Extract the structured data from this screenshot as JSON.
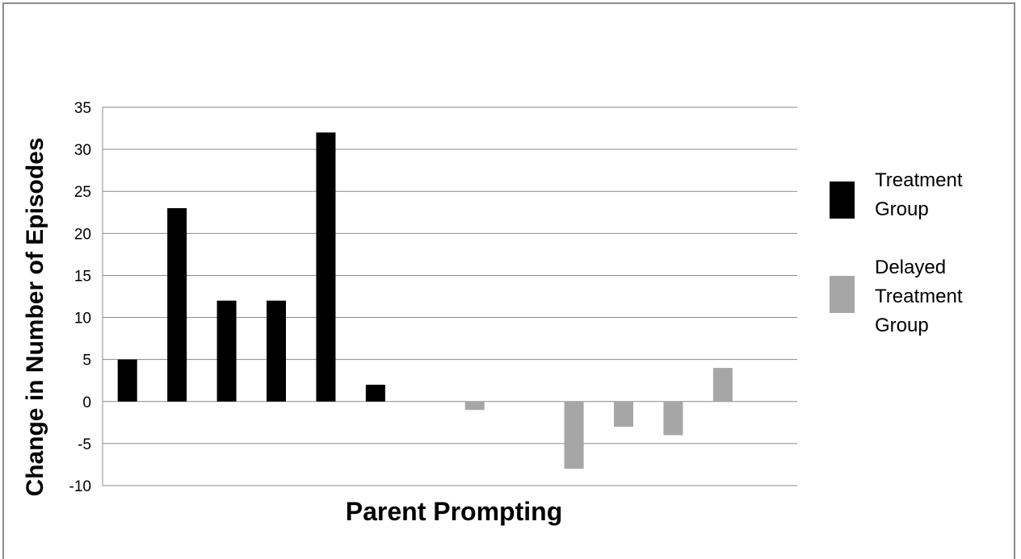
{
  "chart_data": {
    "type": "bar",
    "title": "",
    "xlabel": "Parent Prompting",
    "ylabel": "Change in Number of Episodes",
    "ylim": [
      -10,
      35
    ],
    "yticks": [
      -10,
      -5,
      0,
      5,
      10,
      15,
      20,
      25,
      30,
      35
    ],
    "ytick_labels": [
      "-10",
      "-5",
      "0",
      "5",
      "10",
      "15",
      "20",
      "25",
      "30",
      "35"
    ],
    "grid": true,
    "legend_position": "right",
    "series": [
      {
        "name": "Treatment Group",
        "legend_lines": [
          "Treatment",
          "Group"
        ],
        "color": "#000000",
        "values": [
          5,
          23,
          12,
          12,
          32,
          2
        ]
      },
      {
        "name": "Delayed Treatment Group",
        "legend_lines": [
          "Delayed",
          "Treatment",
          "Group"
        ],
        "color": "#a6a6a6",
        "values": [
          0,
          -1,
          0,
          -8,
          -3,
          -4,
          4
        ]
      }
    ]
  }
}
